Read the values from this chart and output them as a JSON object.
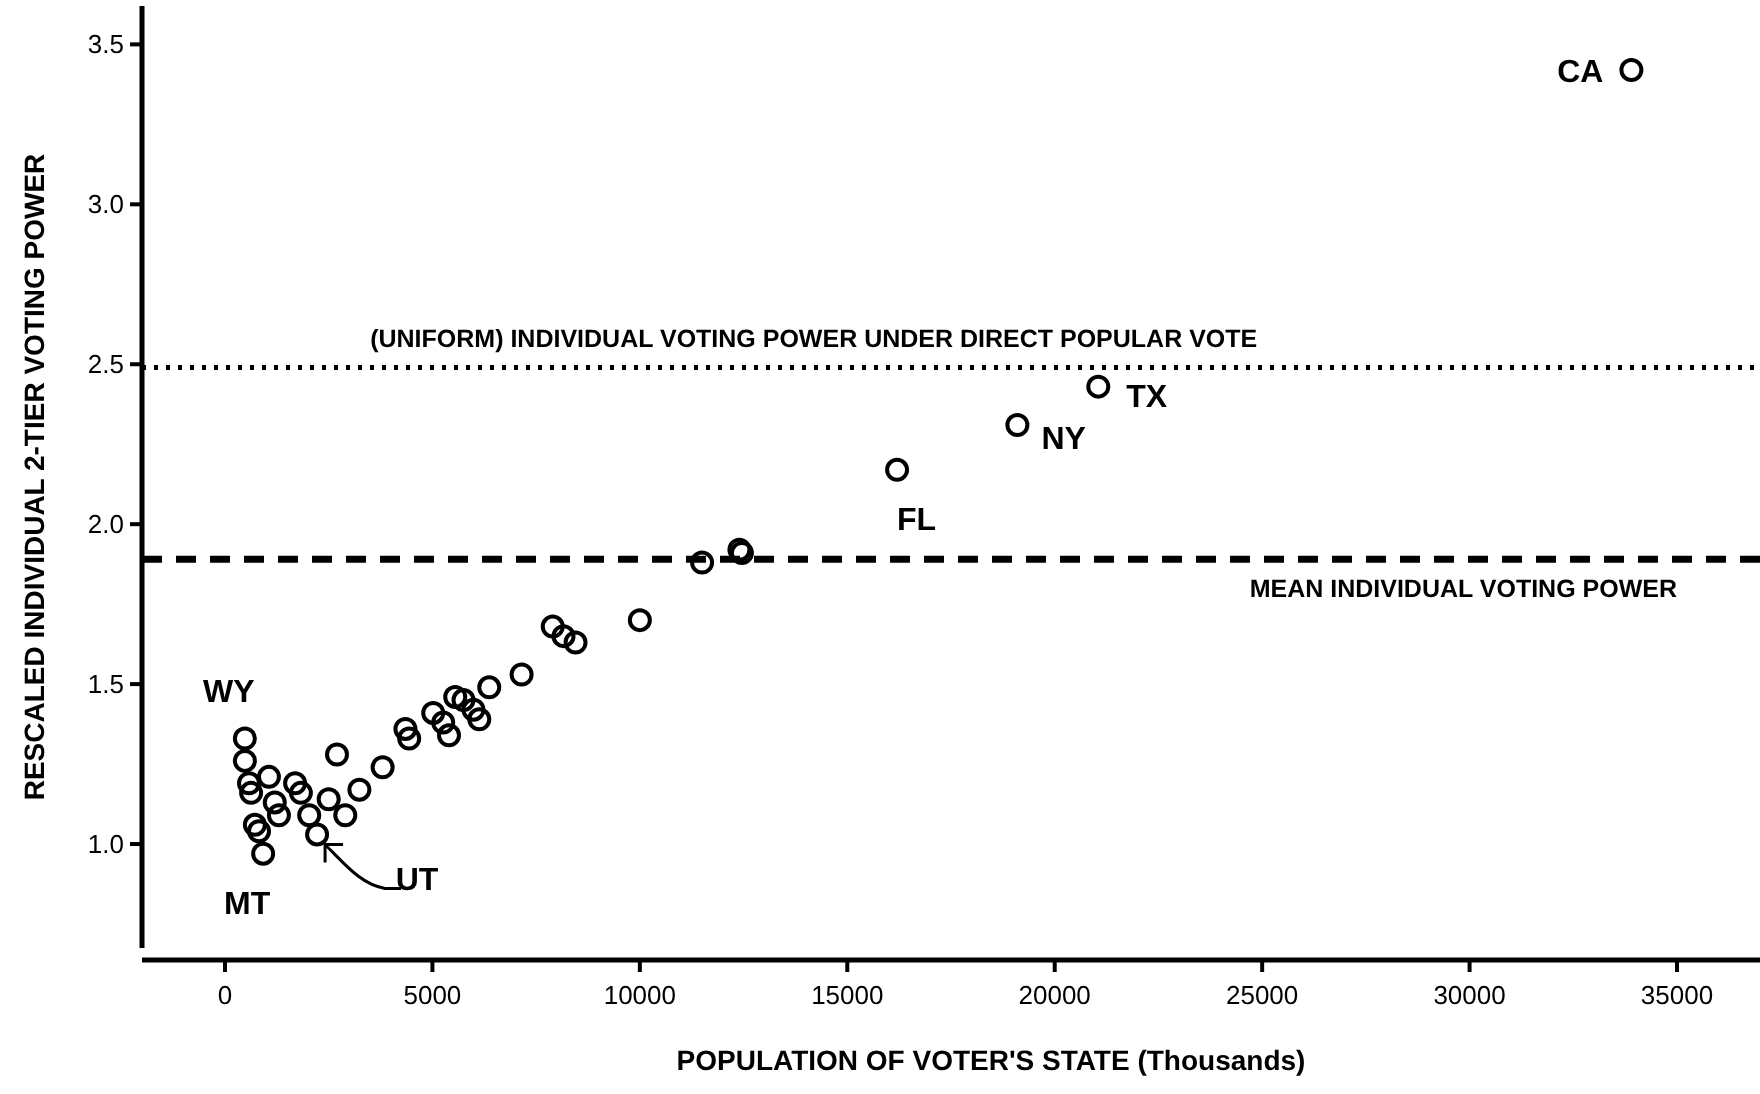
{
  "chart_data": {
    "type": "scatter",
    "xlabel": "POPULATION OF VOTER'S STATE (Thousands)",
    "ylabel": "RESCALED INDIVIDUAL 2-TIER VOTING POWER",
    "x": [
      33900,
      21050,
      19100,
      16200,
      11500,
      12460,
      12400,
      10000,
      7900,
      8160,
      8450,
      7150,
      6370,
      5550,
      5750,
      5990,
      6130,
      5020,
      5260,
      5400,
      4350,
      4440,
      3800,
      3240,
      2700,
      2500,
      2900,
      2220,
      2030,
      1690,
      1830,
      1060,
      1200,
      1300,
      480,
      480,
      580,
      630,
      720,
      820,
      920
    ],
    "values": [
      3.42,
      2.43,
      2.31,
      2.17,
      1.88,
      1.91,
      1.92,
      1.7,
      1.68,
      1.65,
      1.63,
      1.53,
      1.49,
      1.46,
      1.45,
      1.42,
      1.39,
      1.41,
      1.38,
      1.34,
      1.36,
      1.33,
      1.24,
      1.17,
      1.28,
      1.14,
      1.09,
      1.03,
      1.09,
      1.19,
      1.16,
      1.21,
      1.13,
      1.09,
      1.33,
      1.26,
      1.19,
      1.16,
      1.06,
      1.04,
      0.97
    ],
    "color": "#000000",
    "marker": "circle",
    "xlim": [
      -2000,
      37000
    ],
    "xticks": [
      0,
      5000,
      10000,
      15000,
      20000,
      25000,
      30000,
      35000
    ],
    "ylim": [
      0.675,
      3.62
    ],
    "yticks": [
      {
        "value": 1,
        "label": "1.0"
      },
      1.5,
      {
        "value": 2,
        "label": "2.0"
      },
      2.5,
      {
        "value": 3,
        "label": "3.0"
      },
      3.5
    ],
    "ref_lines": [
      {
        "axis": "y",
        "value": 2.49,
        "label": "(UNIFORM) INDIVIDUAL VOTING POWER UNDER DIRECT POPULAR VOTE",
        "line_style": "dotted",
        "color": "#000000"
      },
      {
        "axis": "y",
        "value": 1.89,
        "label": "MEAN INDIVIDUAL VOTING POWER",
        "line_style": "dashed",
        "color": "#000000"
      }
    ],
    "annotations": [
      {
        "text": "CA",
        "x": 33900,
        "y": 3.42
      },
      {
        "text": "TX",
        "x": 21050,
        "y": 2.43
      },
      {
        "text": "NY",
        "x": 19100,
        "y": 2.31
      },
      {
        "text": "FL",
        "x": 16200,
        "y": 2.17
      },
      {
        "text": "WY",
        "x": 480,
        "y": 1.33
      },
      {
        "text": "MT",
        "x": 920,
        "y": 0.97
      },
      {
        "text": "UT",
        "x": 2220,
        "y": 1.03
      }
    ]
  }
}
